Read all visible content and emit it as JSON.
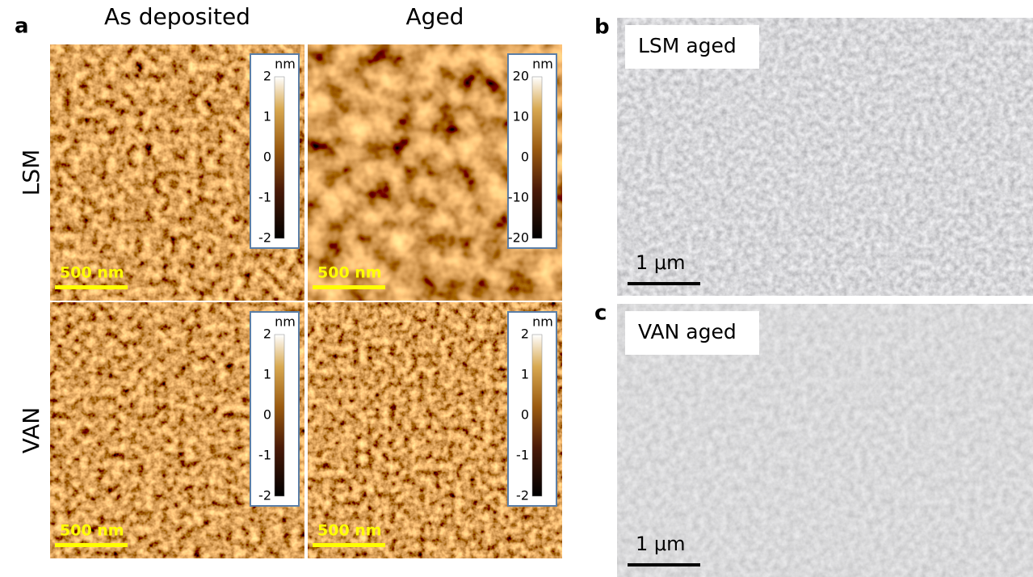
{
  "panel_a": {
    "label": "a",
    "columns": [
      "As deposited",
      "Aged"
    ],
    "rows": [
      "LSM",
      "VAN"
    ],
    "images": [
      {
        "colorbar": {
          "unit": "nm",
          "ticks": [
            2,
            1,
            0,
            -1,
            -2
          ]
        },
        "scale_bar": "500 nm"
      },
      {
        "colorbar": {
          "unit": "nm",
          "ticks": [
            20,
            10,
            0,
            -10,
            -20
          ]
        },
        "scale_bar": "500 nm"
      },
      {
        "colorbar": {
          "unit": "nm",
          "ticks": [
            2,
            1,
            0,
            -1,
            -2
          ]
        },
        "scale_bar": "500 nm"
      },
      {
        "colorbar": {
          "unit": "nm",
          "ticks": [
            2,
            1,
            0,
            -1,
            -2
          ]
        },
        "scale_bar": "500 nm"
      }
    ]
  },
  "panel_b": {
    "label": "b",
    "caption": "LSM aged",
    "scale_bar": "1 μm"
  },
  "panel_c": {
    "label": "c",
    "caption": "VAN aged",
    "scale_bar": "1 μm"
  }
}
